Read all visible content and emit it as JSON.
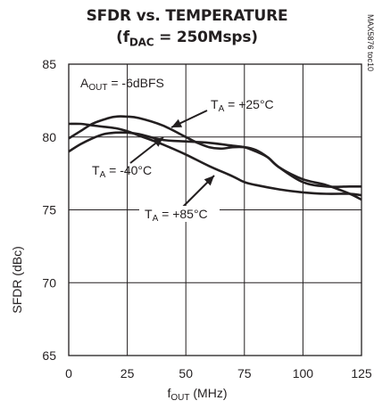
{
  "chart_data": {
    "type": "line",
    "title_main": "SFDR vs. TEMPERATURE",
    "title_sub_prefix": "(f",
    "title_sub_subscript": "DAC",
    "title_sub_suffix": " = 250Msps)",
    "xlabel_main": "f",
    "xlabel_sub": "OUT",
    "xlabel_unit": " (MHz)",
    "ylabel": "SFDR (dBc)",
    "xlim": [
      0,
      125
    ],
    "ylim": [
      65,
      85
    ],
    "xticks": [
      0,
      25,
      50,
      75,
      100,
      125
    ],
    "yticks": [
      65,
      70,
      75,
      80,
      85
    ],
    "grid": true,
    "condition": {
      "main": "A",
      "sub": "OUT",
      "rest": " = -6dBFS"
    },
    "watermark": "MAX5876 toc10",
    "series": [
      {
        "label_main": "T",
        "label_sub": "A",
        "label_rest": " = +25°C",
        "x": [
          0,
          5,
          10,
          15,
          20,
          25,
          30,
          40,
          50,
          55,
          60,
          65,
          70,
          75,
          80,
          85,
          90,
          100,
          110,
          120,
          125
        ],
        "y": [
          79.9,
          80.4,
          80.9,
          81.2,
          81.4,
          81.4,
          81.3,
          80.8,
          80.0,
          79.6,
          79.3,
          79.2,
          79.3,
          79.3,
          79.1,
          78.6,
          77.9,
          77.1,
          76.7,
          76.1,
          75.7
        ]
      },
      {
        "label_main": "T",
        "label_sub": "A",
        "label_rest": " = -40°C",
        "x": [
          0,
          5,
          10,
          15,
          20,
          25,
          30,
          40,
          50,
          60,
          70,
          75,
          80,
          85,
          90,
          100,
          110,
          120,
          125
        ],
        "y": [
          79.0,
          79.5,
          79.9,
          80.2,
          80.3,
          80.3,
          80.2,
          79.8,
          79.7,
          79.6,
          79.4,
          79.3,
          79.0,
          78.6,
          77.9,
          76.9,
          76.6,
          76.6,
          76.6
        ]
      },
      {
        "label_main": "T",
        "label_sub": "A",
        "label_rest": " = +85°C",
        "x": [
          0,
          5,
          10,
          15,
          20,
          25,
          30,
          40,
          50,
          60,
          70,
          75,
          80,
          90,
          100,
          110,
          120,
          125
        ],
        "y": [
          80.9,
          80.9,
          80.8,
          80.7,
          80.6,
          80.4,
          80.1,
          79.5,
          78.8,
          78.0,
          77.3,
          76.9,
          76.7,
          76.4,
          76.2,
          76.1,
          76.1,
          76.0
        ]
      }
    ]
  }
}
